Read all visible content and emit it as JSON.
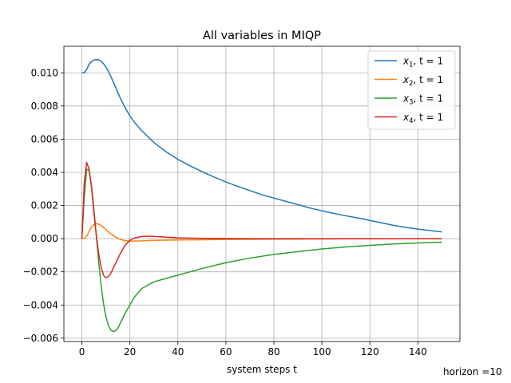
{
  "chart_data": {
    "type": "line",
    "title": "All variables in MIQP",
    "xlabel": "system steps t",
    "ylabel": "",
    "xlim": [
      -7.5,
      157.5
    ],
    "ylim": [
      -0.0062,
      0.0116
    ],
    "xticks": [
      0,
      20,
      40,
      60,
      80,
      100,
      120,
      140
    ],
    "xtick_labels": [
      "0",
      "20",
      "40",
      "60",
      "80",
      "100",
      "120",
      "140"
    ],
    "yticks": [
      -0.006,
      -0.004,
      -0.002,
      0.0,
      0.002,
      0.004,
      0.006,
      0.008,
      0.01
    ],
    "ytick_labels": [
      "−0.006",
      "−0.004",
      "−0.002",
      "0.000",
      "0.002",
      "0.004",
      "0.006",
      "0.008",
      "0.010"
    ],
    "grid": true,
    "legend_position": "top-right",
    "series": [
      {
        "name": "x1, t = 1",
        "label_var": "x",
        "label_sub": "1",
        "label_rest": ", t = 1",
        "color": "#1f77b4",
        "points": [
          [
            0,
            0.01
          ],
          [
            1,
            0.01
          ],
          [
            2,
            0.0102
          ],
          [
            3,
            0.0105
          ],
          [
            4,
            0.01068
          ],
          [
            5,
            0.01077
          ],
          [
            6,
            0.0108
          ],
          [
            7,
            0.01078
          ],
          [
            8,
            0.0107
          ],
          [
            9,
            0.01055
          ],
          [
            10,
            0.01035
          ],
          [
            11,
            0.0101
          ],
          [
            12,
            0.0098
          ],
          [
            13,
            0.00948
          ],
          [
            14,
            0.00915
          ],
          [
            15,
            0.0088
          ],
          [
            16,
            0.00848
          ],
          [
            18,
            0.0079
          ],
          [
            20,
            0.0074
          ],
          [
            22,
            0.007
          ],
          [
            25,
            0.0065
          ],
          [
            30,
            0.0058
          ],
          [
            35,
            0.00525
          ],
          [
            40,
            0.00478
          ],
          [
            45,
            0.0044
          ],
          [
            50,
            0.00405
          ],
          [
            55,
            0.00372
          ],
          [
            60,
            0.00342
          ],
          [
            65,
            0.00315
          ],
          [
            70,
            0.0029
          ],
          [
            75,
            0.00265
          ],
          [
            80,
            0.00245
          ],
          [
            85,
            0.00225
          ],
          [
            90,
            0.00205
          ],
          [
            95,
            0.00185
          ],
          [
            100,
            0.00168
          ],
          [
            105,
            0.00152
          ],
          [
            110,
            0.00138
          ],
          [
            115,
            0.00125
          ],
          [
            120,
            0.0011
          ],
          [
            125,
            0.00095
          ],
          [
            130,
            0.0008
          ],
          [
            135,
            0.00068
          ],
          [
            140,
            0.00058
          ],
          [
            145,
            0.00049
          ],
          [
            150,
            0.00041
          ]
        ]
      },
      {
        "name": "x2, t = 1",
        "label_var": "x",
        "label_sub": "2",
        "label_rest": ", t = 1",
        "color": "#ff7f0e",
        "points": [
          [
            0,
            0.0
          ],
          [
            1,
            0.0
          ],
          [
            2,
            0.00015
          ],
          [
            3,
            0.00045
          ],
          [
            4,
            0.0007
          ],
          [
            5,
            0.00085
          ],
          [
            6,
            0.0009
          ],
          [
            7,
            0.00088
          ],
          [
            8,
            0.0008
          ],
          [
            9,
            0.00068
          ],
          [
            10,
            0.00055
          ],
          [
            12,
            0.0003
          ],
          [
            14,
            0.0001
          ],
          [
            16,
            -5e-05
          ],
          [
            18,
            -0.00012
          ],
          [
            20,
            -0.00015
          ],
          [
            25,
            -0.00013
          ],
          [
            30,
            -0.0001
          ],
          [
            40,
            -8e-05
          ],
          [
            60,
            -5e-05
          ],
          [
            80,
            -3e-05
          ],
          [
            100,
            -2e-05
          ],
          [
            120,
            -1e-05
          ],
          [
            150,
            0.0
          ]
        ]
      },
      {
        "name": "x3, t = 1",
        "label_var": "x",
        "label_sub": "3",
        "label_rest": ", t = 1",
        "color": "#2ca02c",
        "points": [
          [
            0,
            0.0
          ],
          [
            1,
            0.0025
          ],
          [
            2,
            0.0042
          ],
          [
            3,
            0.0041
          ],
          [
            4,
            0.0032
          ],
          [
            5,
            0.0018
          ],
          [
            6,
            0.0002
          ],
          [
            7,
            -0.0014
          ],
          [
            8,
            -0.0028
          ],
          [
            9,
            -0.0039
          ],
          [
            10,
            -0.0047
          ],
          [
            11,
            -0.0052
          ],
          [
            12,
            -0.0055
          ],
          [
            13,
            -0.0056
          ],
          [
            14,
            -0.00555
          ],
          [
            15,
            -0.0054
          ],
          [
            16,
            -0.0051
          ],
          [
            18,
            -0.0045
          ],
          [
            20,
            -0.004
          ],
          [
            22,
            -0.0035
          ],
          [
            25,
            -0.003
          ],
          [
            30,
            -0.0026
          ],
          [
            35,
            -0.0024
          ],
          [
            40,
            -0.0022
          ],
          [
            50,
            -0.0018
          ],
          [
            60,
            -0.00145
          ],
          [
            70,
            -0.00117
          ],
          [
            80,
            -0.00095
          ],
          [
            90,
            -0.00078
          ],
          [
            100,
            -0.00062
          ],
          [
            110,
            -0.0005
          ],
          [
            120,
            -0.0004
          ],
          [
            130,
            -0.00032
          ],
          [
            140,
            -0.00026
          ],
          [
            150,
            -0.00021
          ]
        ]
      },
      {
        "name": "x4, t = 1",
        "label_var": "x",
        "label_sub": "4",
        "label_rest": ", t = 1",
        "color": "#d62728",
        "points": [
          [
            0,
            0.0
          ],
          [
            1,
            0.0034
          ],
          [
            2,
            0.0046
          ],
          [
            3,
            0.0042
          ],
          [
            4,
            0.0031
          ],
          [
            5,
            0.0016
          ],
          [
            6,
            0.0002
          ],
          [
            7,
            -0.0009
          ],
          [
            8,
            -0.0017
          ],
          [
            9,
            -0.0022
          ],
          [
            10,
            -0.00235
          ],
          [
            11,
            -0.0023
          ],
          [
            12,
            -0.0021
          ],
          [
            13,
            -0.0018
          ],
          [
            14,
            -0.0015
          ],
          [
            16,
            -0.0009
          ],
          [
            18,
            -0.0004
          ],
          [
            20,
            -0.0001
          ],
          [
            22,
            5e-05
          ],
          [
            25,
            0.00013
          ],
          [
            28,
            0.00015
          ],
          [
            32,
            0.00012
          ],
          [
            40,
            5e-05
          ],
          [
            50,
            2e-05
          ],
          [
            70,
            0.0
          ],
          [
            100,
            0.0
          ],
          [
            150,
            0.0
          ]
        ]
      }
    ]
  },
  "footnote": "horizon =10"
}
